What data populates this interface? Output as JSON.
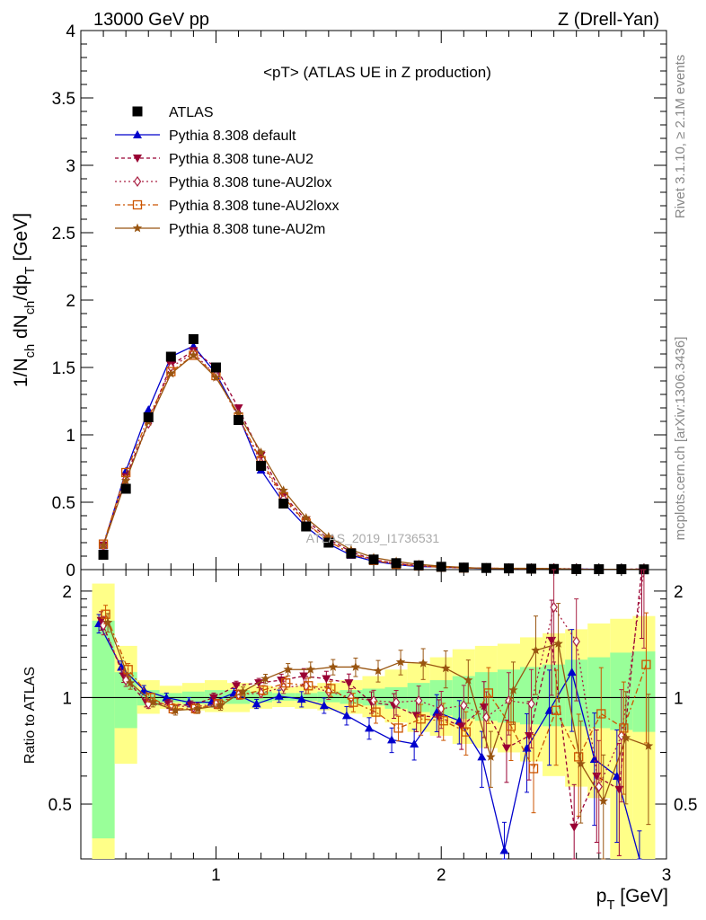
{
  "header": {
    "left": "13000 GeV pp",
    "right": "Z (Drell-Yan)"
  },
  "side": {
    "top": "Rivet 3.1.10, ≥ 2.1M events",
    "bottom": "mcplots.cern.ch [arXiv:1306.3436]"
  },
  "watermark": "ATLAS_2019_I1736531",
  "chart_data": {
    "type": "line",
    "title": "<pT> (ATLAS UE in Z production)",
    "xlabel": "pT [GeV]",
    "ylabel": "1/Nch dNch/dpT [GeV]",
    "ratio_ylabel": "Ratio to ATLAS",
    "xlim": [
      0.4,
      3.0
    ],
    "ylim": [
      0,
      4
    ],
    "ratio_ylim": [
      0.35,
      2.3
    ],
    "x_ticks": [
      "1",
      "2",
      "3"
    ],
    "y_ticks": [
      "0",
      "0.5",
      "1",
      "1.5",
      "2",
      "2.5",
      "3",
      "3.5",
      "4"
    ],
    "ratio_y_ticks": [
      "0.5",
      "1",
      "2"
    ],
    "legend_position": "top-left",
    "x": [
      0.5,
      0.6,
      0.7,
      0.8,
      0.9,
      1.0,
      1.1,
      1.2,
      1.3,
      1.4,
      1.5,
      1.6,
      1.7,
      1.8,
      1.9,
      2.0,
      2.1,
      2.2,
      2.3,
      2.4,
      2.5,
      2.6,
      2.7,
      2.8,
      2.9
    ],
    "data": {
      "name": "ATLAS",
      "values": [
        0.11,
        0.6,
        1.13,
        1.58,
        1.71,
        1.5,
        1.11,
        0.77,
        0.49,
        0.32,
        0.2,
        0.12,
        0.075,
        0.048,
        0.031,
        0.021,
        0.015,
        0.012,
        0.009,
        0.007,
        0.005,
        0.004,
        0.003,
        0.003,
        0.002
      ]
    },
    "series": [
      {
        "name": "Pythia 8.308 default",
        "color": "#0000cc",
        "marker": "triangle-up",
        "dash": "",
        "ratio": [
          1.62,
          1.22,
          1.05,
          1.0,
          0.97,
          0.97,
          1.03,
          0.96,
          1.01,
          0.99,
          0.95,
          0.89,
          0.82,
          0.76,
          0.74,
          0.91,
          0.86,
          0.68,
          0.37,
          0.72,
          0.92,
          1.18,
          0.67,
          0.6,
          0.3
        ]
      },
      {
        "name": "Pythia 8.308 tune-AU2",
        "color": "#990033",
        "marker": "triangle-down",
        "dash": "4,3",
        "ratio": [
          1.65,
          1.15,
          0.97,
          0.96,
          0.95,
          1.0,
          1.08,
          1.1,
          1.12,
          1.15,
          1.13,
          1.1,
          0.97,
          0.95,
          0.89,
          0.88,
          0.83,
          0.94,
          0.72,
          0.78,
          1.45,
          0.43,
          0.6,
          0.55,
          2.45
        ]
      },
      {
        "name": "Pythia 8.308 tune-AU2lox",
        "color": "#aa2244",
        "marker": "diamond",
        "dash": "2,3",
        "ratio": [
          1.6,
          1.12,
          0.96,
          0.95,
          0.94,
          0.96,
          1.02,
          1.03,
          1.07,
          1.08,
          1.04,
          1.0,
          0.98,
          0.97,
          0.98,
          0.93,
          0.95,
          0.88,
          0.98,
          0.96,
          1.8,
          1.44,
          0.56,
          0.78,
          2.3
        ]
      },
      {
        "name": "Pythia 8.308 tune-AU2loxx",
        "color": "#cc5500",
        "marker": "square-open",
        "dash": "6,3,2,3",
        "ratio": [
          1.72,
          1.2,
          1.0,
          0.93,
          0.93,
          0.96,
          1.02,
          1.05,
          1.1,
          1.08,
          1.06,
          0.97,
          0.91,
          0.82,
          0.87,
          0.86,
          0.8,
          1.03,
          0.83,
          0.63,
          0.92,
          0.68,
          0.9,
          0.82,
          1.24
        ]
      },
      {
        "name": "Pythia 8.308 tune-AU2m",
        "color": "#995511",
        "marker": "star",
        "dash": "",
        "ratio": [
          1.63,
          1.1,
          0.97,
          0.92,
          0.93,
          0.95,
          1.04,
          1.13,
          1.2,
          1.2,
          1.22,
          1.22,
          1.19,
          1.26,
          1.25,
          1.21,
          1.12,
          0.68,
          1.05,
          1.36,
          1.42,
          0.65,
          0.51,
          0.77,
          0.73
        ]
      }
    ],
    "band_edges": [
      0.45,
      0.55,
      0.65,
      0.75,
      0.85,
      0.95,
      1.05,
      1.15,
      1.25,
      1.35,
      1.45,
      1.55,
      1.65,
      1.75,
      1.85,
      1.95,
      2.05,
      2.15,
      2.25,
      2.35,
      2.45,
      2.55,
      2.65,
      2.75,
      2.85,
      2.95
    ],
    "band_stat_lo": [
      0.4,
      0.82,
      0.95,
      0.97,
      0.96,
      0.96,
      0.96,
      0.97,
      0.98,
      0.98,
      0.97,
      0.96,
      0.95,
      0.93,
      0.91,
      0.89,
      0.87,
      0.86,
      0.85,
      0.84,
      0.83,
      0.83,
      0.82,
      0.81,
      0.8
    ],
    "band_stat_hi": [
      1.65,
      1.18,
      1.05,
      1.03,
      1.04,
      1.05,
      1.05,
      1.04,
      1.03,
      1.03,
      1.04,
      1.05,
      1.06,
      1.07,
      1.1,
      1.12,
      1.15,
      1.18,
      1.2,
      1.22,
      1.24,
      1.28,
      1.3,
      1.34,
      1.35
    ],
    "band_tot_lo": [
      0.35,
      0.65,
      0.9,
      0.93,
      0.92,
      0.91,
      0.91,
      0.93,
      0.94,
      0.93,
      0.92,
      0.9,
      0.88,
      0.85,
      0.8,
      0.78,
      0.74,
      0.72,
      0.7,
      0.66,
      0.6,
      0.56,
      0.52,
      0.35,
      0.35
    ],
    "band_tot_hi": [
      2.1,
      1.4,
      1.12,
      1.08,
      1.1,
      1.12,
      1.1,
      1.08,
      1.07,
      1.08,
      1.1,
      1.12,
      1.15,
      1.2,
      1.25,
      1.3,
      1.37,
      1.4,
      1.42,
      1.48,
      1.52,
      1.56,
      1.62,
      1.67,
      1.7
    ],
    "ratio_errors": [
      0.06,
      0.04,
      0.03,
      0.03,
      0.03,
      0.03,
      0.03,
      0.03,
      0.04,
      0.05,
      0.05,
      0.06,
      0.07,
      0.08,
      0.1,
      0.12,
      0.14,
      0.18,
      0.2,
      0.25,
      0.3,
      0.32,
      0.35,
      0.35,
      0.4
    ]
  }
}
